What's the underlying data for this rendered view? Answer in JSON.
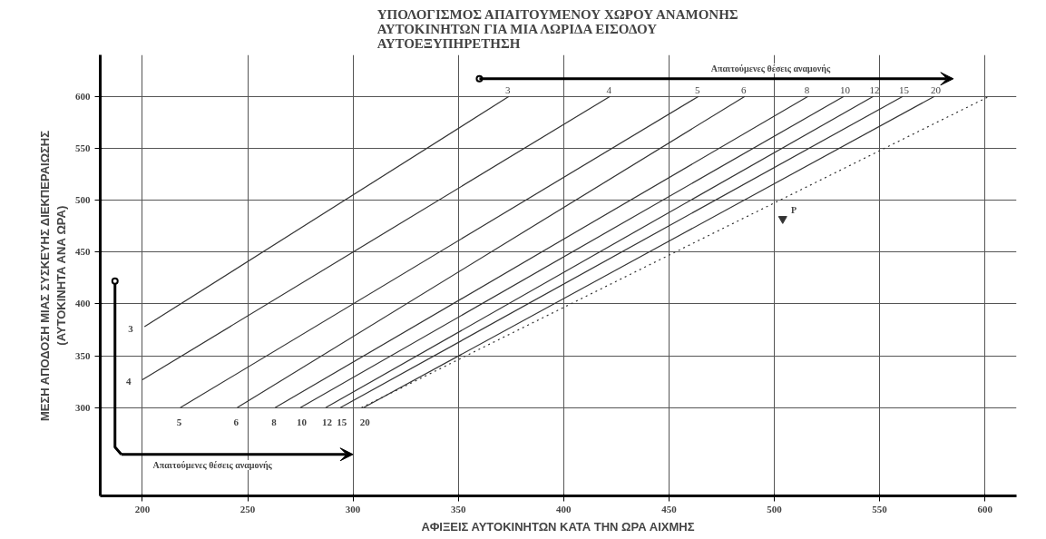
{
  "chart_data": {
    "type": "line",
    "title": "ΥΠΟΛΟΓΙΣΜΟΣ ΑΠΑΙΤΟΥΜΕΝΟΥ ΧΩΡΟΥ ΑΝΑΜΟΝΗΣ\nΑΥΤΟΚΙΝΗΤΩΝ ΓΙΑ ΜΙΑ ΛΩΡΙΔΑ ΕΙΣΟΔΟΥ\nΑΥΤΟΕΞΥΠΗΡΕΤΗΣΗ",
    "xlabel": "ΑΦΙΞΕΙΣ ΑΥΤΟΚΙΝΗΤΩΝ ΚΑΤΑ ΤΗΝ ΩΡΑ ΑΙΧΜΗΣ",
    "ylabel": "ΜΕΣΗ ΑΠΟΔΟΣΗ ΜΙΑΣ ΣΥΣΚΕΥΗΣ ΔΙΕΚΠΕΡΑΙΩΣΗΣ\n(ΑΥΤΟΚΙΝΗΤΑ ΑΝΑ ΩΡΑ)",
    "xlim": [
      180,
      615
    ],
    "ylim": [
      215,
      640
    ],
    "xticks": [
      200,
      250,
      300,
      350,
      400,
      450,
      500,
      550,
      600
    ],
    "yticks": [
      300,
      350,
      400,
      450,
      500,
      550,
      600
    ],
    "grid": true,
    "line_style": "solid",
    "series": [
      {
        "name": "3",
        "color": "#333333",
        "x": [
          201,
          374
        ],
        "values": [
          378,
          600
        ]
      },
      {
        "name": "4",
        "color": "#333333",
        "x": [
          200,
          422
        ],
        "values": [
          327,
          600
        ]
      },
      {
        "name": "5",
        "color": "#333333",
        "x": [
          218,
          464
        ],
        "values": [
          300,
          600
        ]
      },
      {
        "name": "6",
        "color": "#333333",
        "x": [
          245,
          486
        ],
        "values": [
          300,
          600
        ]
      },
      {
        "name": "8",
        "color": "#333333",
        "x": [
          263,
          516
        ],
        "values": [
          300,
          600
        ]
      },
      {
        "name": "10",
        "color": "#333333",
        "x": [
          275,
          533
        ],
        "values": [
          300,
          600
        ]
      },
      {
        "name": "12",
        "color": "#333333",
        "x": [
          287,
          547
        ],
        "values": [
          300,
          600
        ]
      },
      {
        "name": "15",
        "color": "#333333",
        "x": [
          294,
          561
        ],
        "values": [
          300,
          600
        ]
      },
      {
        "name": "20",
        "color": "#333333",
        "x": [
          305,
          576
        ],
        "values": [
          300,
          600
        ]
      },
      {
        "color": "#333333",
        "x": [
          304,
          602
        ],
        "values": [
          300,
          600
        ],
        "line_style": "dotted"
      },
      {
        "type": "scatter",
        "color": "#333333",
        "x": [
          504
        ],
        "values": [
          482
        ],
        "marker": "triangle"
      }
    ],
    "annotations": [
      "Απαιτούμενες θέσεις αναμονής",
      "Απαιτούμενες θέσεις αναμονής",
      "P"
    ]
  }
}
